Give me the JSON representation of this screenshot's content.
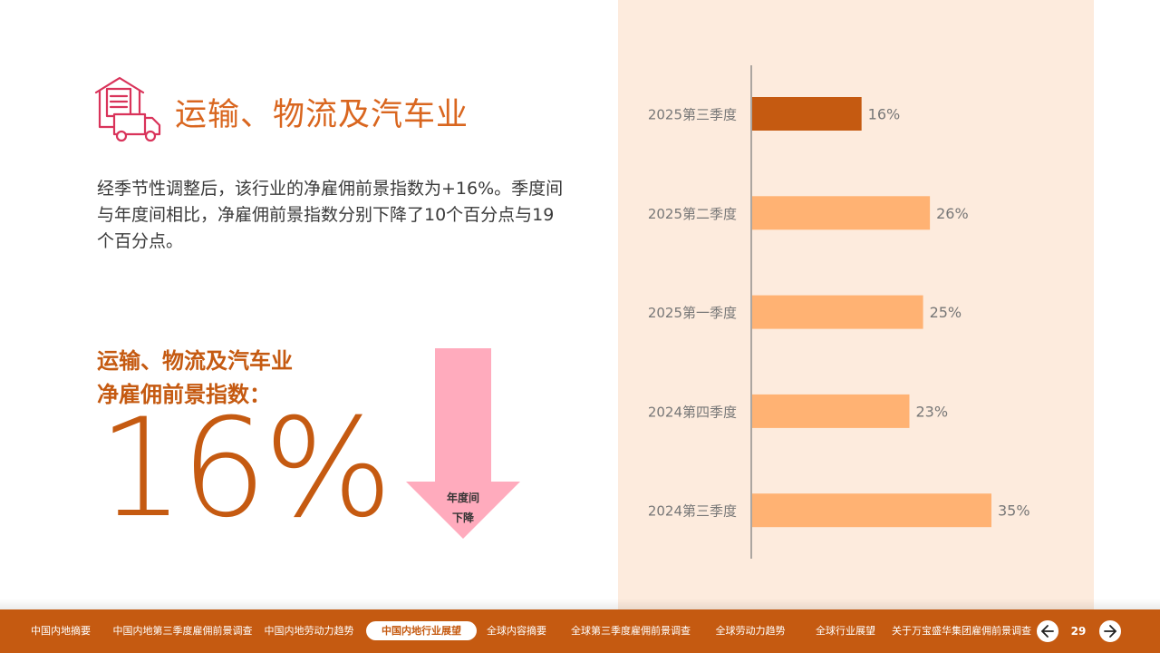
{
  "section": {
    "title": "运输、物流及汽车业",
    "icon": "warehouse-truck-icon"
  },
  "description": "经季节性调整后，该行业的净雇佣前景指数为+16%。季度间与年度间相比，净雇佣前景指数分别下降了10个百分点与19个百分点。",
  "metric": {
    "label_line1": "运输、物流及汽车业",
    "label_line2": "净雇佣前景指数：",
    "value": "16%",
    "arrow_text_line1": "年度间",
    "arrow_text_line2": "下降"
  },
  "chart_data": {
    "type": "bar",
    "orientation": "horizontal",
    "categories": [
      "2025第三季度",
      "2025第二季度",
      "2025第一季度",
      "2024第四季度",
      "2024第三季度"
    ],
    "values": [
      16,
      26,
      25,
      23,
      35
    ],
    "value_labels": [
      "16%",
      "26%",
      "25%",
      "23%",
      "35%"
    ],
    "highlight_index": 0,
    "xlim": [
      0,
      40
    ],
    "colors": {
      "highlight": "#c55a11",
      "default": "#ffb273"
    }
  },
  "nav": {
    "items": [
      "中国内地摘要",
      "中国内地第三季度雇佣前景调查",
      "中国内地劳动力趋势",
      "中国内地行业展望",
      "全球内容摘要",
      "全球第三季度雇佣前景调查",
      "全球劳动力趋势",
      "全球行业展望",
      "关于万宝盛华集团雇佣前景调查"
    ],
    "active_index": 3,
    "prev_icon": "arrow-left-icon",
    "next_icon": "arrow-right-icon",
    "page_number": "29"
  },
  "colors": {
    "accent": "#c55a11",
    "title": "#d9661f",
    "panel_bg": "#fdebdd",
    "arrow": "#ffabbd"
  }
}
